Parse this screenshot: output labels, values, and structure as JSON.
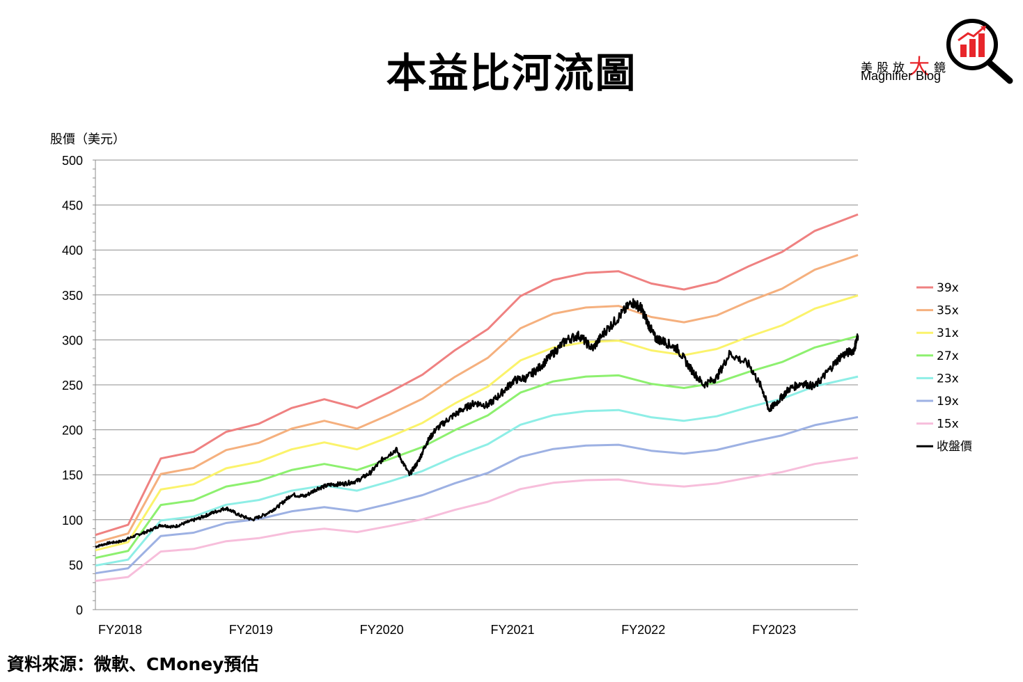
{
  "title": "本益比河流圖",
  "logo": {
    "chinese_prefix": "美股放",
    "chinese_big": "大",
    "chinese_suffix": "鏡",
    "english": "Magnifier Blog",
    "icon": "magnifier-bar-chart-icon"
  },
  "source": "資料來源：微軟、CMoney預估",
  "chart_data": {
    "type": "line",
    "ylabel": "股價（美元）",
    "ylim": [
      0,
      500
    ],
    "yticks": [
      0,
      50,
      100,
      150,
      200,
      250,
      300,
      350,
      400,
      450,
      500
    ],
    "xlim": [
      2017.5,
      2023.33
    ],
    "xticks": [
      {
        "x": 2017.5,
        "label": "FY2018"
      },
      {
        "x": 2018.5,
        "label": "FY2019"
      },
      {
        "x": 2019.5,
        "label": "FY2020"
      },
      {
        "x": 2020.5,
        "label": "FY2021"
      },
      {
        "x": 2021.5,
        "label": "FY2022"
      },
      {
        "x": 2022.5,
        "label": "FY2023"
      }
    ],
    "grid": "horizontal",
    "legend_position": "right",
    "eps_base": {
      "x": [
        2017.5,
        2017.75,
        2018.0,
        2018.25,
        2018.5,
        2018.75,
        2019.0,
        2019.25,
        2019.5,
        2019.75,
        2020.0,
        2020.25,
        2020.5,
        2020.75,
        2021.0,
        2021.25,
        2021.5,
        2021.75,
        2022.0,
        2022.25,
        2022.5,
        2022.75,
        2023.0,
        2023.33
      ],
      "values": [
        2.13,
        2.42,
        4.31,
        4.5,
        5.07,
        5.3,
        5.75,
        6.0,
        5.75,
        6.2,
        6.7,
        7.4,
        8.0,
        8.94,
        9.4,
        9.6,
        9.65,
        9.3,
        9.13,
        9.35,
        9.8,
        10.2,
        10.8,
        11.27
      ]
    },
    "series": [
      {
        "name": "39x",
        "multiple": 39,
        "color": "#ef8181"
      },
      {
        "name": "35x",
        "multiple": 35,
        "color": "#f5b07e"
      },
      {
        "name": "31x",
        "multiple": 31,
        "color": "#fbf36b"
      },
      {
        "name": "27x",
        "multiple": 27,
        "color": "#8df06f"
      },
      {
        "name": "23x",
        "multiple": 23,
        "color": "#8eeee6"
      },
      {
        "name": "19x",
        "multiple": 19,
        "color": "#9db1e3"
      },
      {
        "name": "15x",
        "multiple": 15,
        "color": "#f7bedb"
      }
    ],
    "price_series": {
      "name": "收盤價",
      "color": "#000000",
      "x": [
        2017.5,
        2017.6,
        2017.7,
        2017.8,
        2017.9,
        2018.0,
        2018.1,
        2018.2,
        2018.3,
        2018.4,
        2018.5,
        2018.6,
        2018.7,
        2018.8,
        2018.9,
        2019.0,
        2019.1,
        2019.2,
        2019.3,
        2019.4,
        2019.5,
        2019.6,
        2019.7,
        2019.8,
        2019.9,
        2019.97,
        2020.03,
        2020.1,
        2020.2,
        2020.3,
        2020.4,
        2020.5,
        2020.6,
        2020.7,
        2020.8,
        2020.9,
        2021.0,
        2021.1,
        2021.2,
        2021.3,
        2021.4,
        2021.5,
        2021.6,
        2021.67,
        2021.72,
        2021.78,
        2021.85,
        2021.95,
        2022.05,
        2022.15,
        2022.25,
        2022.35,
        2022.5,
        2022.6,
        2022.65,
        2022.72,
        2022.8,
        2022.9,
        2023.0,
        2023.1,
        2023.2,
        2023.3,
        2023.33
      ],
      "values": [
        70,
        74,
        76,
        82,
        87,
        94,
        92,
        97,
        102,
        108,
        113,
        105,
        100,
        106,
        115,
        128,
        126,
        135,
        139,
        140,
        143,
        152,
        168,
        178,
        150,
        165,
        185,
        200,
        212,
        222,
        230,
        227,
        240,
        255,
        258,
        270,
        285,
        300,
        305,
        290,
        310,
        325,
        342,
        336,
        320,
        302,
        298,
        290,
        268,
        250,
        258,
        285,
        272,
        245,
        222,
        232,
        245,
        252,
        248,
        265,
        282,
        289,
        305
      ]
    }
  }
}
